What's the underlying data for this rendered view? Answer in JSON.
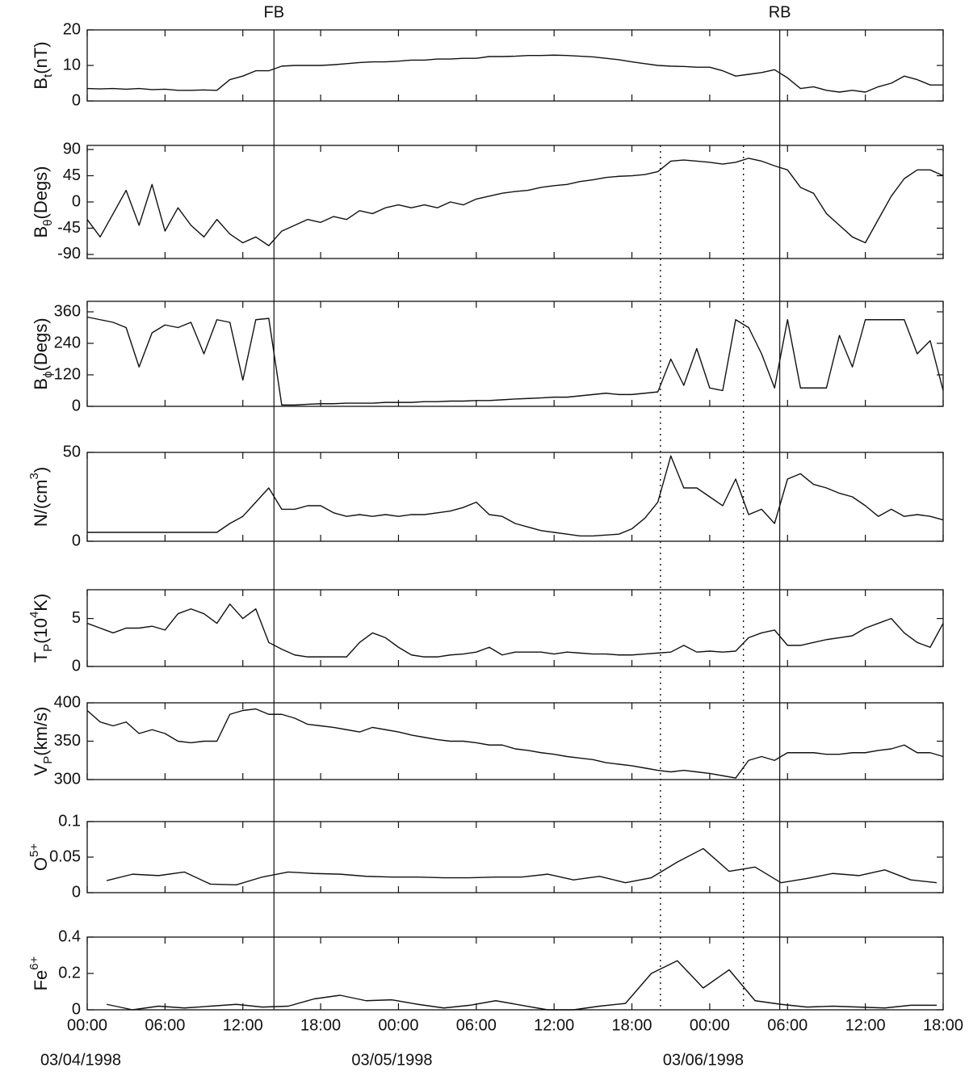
{
  "annotations": {
    "vlines": [
      {
        "x": 14.4,
        "label": "FB",
        "style": "solid"
      },
      {
        "x": 53.4,
        "label": "RB",
        "style": "solid"
      },
      {
        "x": 44.2,
        "style": "dotted"
      },
      {
        "x": 50.6,
        "style": "dotted"
      }
    ]
  },
  "chart_data": [
    {
      "type": "line",
      "ylabel": [
        {
          "text": "B"
        },
        {
          "text": "t",
          "shift": "sub"
        },
        {
          "text": "(nT)"
        }
      ],
      "xlim": [
        0,
        66
      ],
      "ylim": [
        0,
        20
      ],
      "yticks": [
        0,
        10,
        20
      ],
      "color": "#111111",
      "x": [
        0,
        1,
        2,
        3,
        4,
        5,
        6,
        7,
        8,
        9,
        10,
        11,
        12,
        13,
        14,
        15,
        16,
        17,
        18,
        19,
        20,
        21,
        22,
        23,
        24,
        25,
        26,
        27,
        28,
        29,
        30,
        31,
        32,
        33,
        34,
        35,
        36,
        37,
        38,
        39,
        40,
        41,
        42,
        43,
        44,
        45,
        46,
        47,
        48,
        49,
        50,
        51,
        52,
        53,
        54,
        55,
        56,
        57,
        58,
        59,
        60,
        61,
        62,
        63,
        64,
        65,
        66
      ],
      "values": [
        3.5,
        3.4,
        3.5,
        3.3,
        3.5,
        3.2,
        3.3,
        3.0,
        3.0,
        3.1,
        3.0,
        6,
        7,
        8.5,
        8.5,
        9.8,
        10,
        10,
        10,
        10.2,
        10.5,
        10.8,
        11,
        11,
        11.2,
        11.5,
        11.5,
        11.8,
        11.8,
        12,
        12,
        12.5,
        12.5,
        12.6,
        12.8,
        12.8,
        12.9,
        12.8,
        12.6,
        12.4,
        12,
        11.6,
        11,
        10.5,
        10,
        9.8,
        9.7,
        9.5,
        9.5,
        8.5,
        7,
        7.5,
        8,
        8.8,
        6.5,
        3.5,
        4,
        3,
        2.5,
        3,
        2.5,
        4,
        5,
        7,
        6,
        4.5,
        4.5
      ]
    },
    {
      "type": "line",
      "ylabel": [
        {
          "text": "B"
        },
        {
          "text": "θ",
          "shift": "sub"
        },
        {
          "text": "(Degs)"
        }
      ],
      "xlim": [
        0,
        66
      ],
      "ylim": [
        -97,
        97
      ],
      "yticks": [
        -90,
        -45,
        0,
        45,
        90
      ],
      "color": "#111111",
      "x": [
        0,
        1,
        2,
        3,
        4,
        5,
        6,
        7,
        8,
        9,
        10,
        11,
        12,
        13,
        14,
        15,
        16,
        17,
        18,
        19,
        20,
        21,
        22,
        23,
        24,
        25,
        26,
        27,
        28,
        29,
        30,
        31,
        32,
        33,
        34,
        35,
        36,
        37,
        38,
        39,
        40,
        41,
        42,
        43,
        44,
        45,
        46,
        47,
        48,
        49,
        50,
        51,
        52,
        53,
        54,
        55,
        56,
        57,
        58,
        59,
        60,
        61,
        62,
        63,
        64,
        65,
        66
      ],
      "values": [
        -30,
        -60,
        -20,
        20,
        -40,
        30,
        -50,
        -10,
        -40,
        -60,
        -30,
        -55,
        -70,
        -60,
        -75,
        -50,
        -40,
        -30,
        -35,
        -25,
        -30,
        -15,
        -20,
        -10,
        -5,
        -10,
        -5,
        -10,
        0,
        -5,
        5,
        10,
        15,
        18,
        20,
        25,
        28,
        30,
        35,
        38,
        42,
        44,
        45,
        47,
        52,
        70,
        72,
        70,
        68,
        65,
        68,
        75,
        70,
        62,
        55,
        25,
        15,
        -20,
        -40,
        -60,
        -70,
        -30,
        10,
        40,
        55,
        55,
        45
      ]
    },
    {
      "type": "line",
      "ylabel": [
        {
          "text": "B"
        },
        {
          "text": "ϕ",
          "shift": "sub"
        },
        {
          "text": "(Degs)"
        }
      ],
      "xlim": [
        0,
        66
      ],
      "ylim": [
        0,
        400
      ],
      "yticks": [
        0,
        120,
        240,
        360
      ],
      "color": "#111111",
      "x": [
        0,
        1,
        2,
        3,
        4,
        5,
        6,
        7,
        8,
        9,
        10,
        11,
        12,
        13,
        14,
        15,
        16,
        17,
        18,
        19,
        20,
        21,
        22,
        23,
        24,
        25,
        26,
        27,
        28,
        29,
        30,
        31,
        32,
        33,
        34,
        35,
        36,
        37,
        38,
        39,
        40,
        41,
        42,
        43,
        44,
        45,
        46,
        47,
        48,
        49,
        50,
        51,
        52,
        53,
        54,
        55,
        56,
        57,
        58,
        59,
        60,
        61,
        62,
        63,
        64,
        65,
        66
      ],
      "values": [
        340,
        330,
        320,
        300,
        150,
        280,
        310,
        300,
        320,
        200,
        330,
        320,
        100,
        330,
        335,
        5,
        5,
        8,
        10,
        10,
        12,
        12,
        12,
        15,
        15,
        15,
        18,
        18,
        20,
        20,
        22,
        22,
        25,
        28,
        30,
        32,
        35,
        35,
        40,
        45,
        50,
        45,
        45,
        50,
        55,
        180,
        80,
        220,
        70,
        60,
        330,
        300,
        200,
        70,
        330,
        70,
        70,
        70,
        270,
        150,
        330,
        330,
        330,
        330,
        200,
        250,
        60
      ]
    },
    {
      "type": "line",
      "ylabel": [
        {
          "text": "N/(cm"
        },
        {
          "text": "3",
          "shift": "super"
        },
        {
          "text": ")"
        }
      ],
      "xlim": [
        0,
        66
      ],
      "ylim": [
        0,
        50
      ],
      "yticks": [
        0,
        50
      ],
      "color": "#111111",
      "x": [
        0,
        1,
        2,
        3,
        4,
        5,
        6,
        7,
        8,
        9,
        10,
        11,
        12,
        13,
        14,
        15,
        16,
        17,
        18,
        19,
        20,
        21,
        22,
        23,
        24,
        25,
        26,
        27,
        28,
        29,
        30,
        31,
        32,
        33,
        34,
        35,
        36,
        37,
        38,
        39,
        40,
        41,
        42,
        43,
        44,
        45,
        46,
        47,
        48,
        49,
        50,
        51,
        52,
        53,
        54,
        55,
        56,
        57,
        58,
        59,
        60,
        61,
        62,
        63,
        64,
        65,
        66
      ],
      "values": [
        5,
        5,
        5,
        5,
        5,
        5,
        5,
        5,
        5,
        5,
        5,
        10,
        14,
        22,
        30,
        18,
        18,
        20,
        20,
        16,
        14,
        15,
        14,
        15,
        14,
        15,
        15,
        16,
        17,
        19,
        22,
        15,
        14,
        10,
        8,
        6,
        5,
        4,
        3,
        3,
        3.5,
        4,
        7,
        13,
        22,
        48,
        30,
        30,
        25,
        20,
        35,
        15,
        18,
        10,
        35,
        38,
        32,
        30,
        27,
        25,
        20,
        14,
        18,
        14,
        15,
        14,
        12
      ]
    },
    {
      "type": "line",
      "ylabel": [
        {
          "text": "T"
        },
        {
          "text": "P",
          "shift": "sub"
        },
        {
          "text": "(10"
        },
        {
          "text": "4",
          "shift": "super"
        },
        {
          "text": "K)"
        }
      ],
      "xlim": [
        0,
        66
      ],
      "ylim": [
        0,
        8
      ],
      "yticks": [
        0,
        5
      ],
      "color": "#111111",
      "x": [
        0,
        1,
        2,
        3,
        4,
        5,
        6,
        7,
        8,
        9,
        10,
        11,
        12,
        13,
        14,
        15,
        16,
        17,
        18,
        19,
        20,
        21,
        22,
        23,
        24,
        25,
        26,
        27,
        28,
        29,
        30,
        31,
        32,
        33,
        34,
        35,
        36,
        37,
        38,
        39,
        40,
        41,
        42,
        43,
        44,
        45,
        46,
        47,
        48,
        49,
        50,
        51,
        52,
        53,
        54,
        55,
        56,
        57,
        58,
        59,
        60,
        61,
        62,
        63,
        64,
        65,
        66
      ],
      "values": [
        4.5,
        4,
        3.5,
        4,
        4,
        4.2,
        3.8,
        5.5,
        6,
        5.5,
        4.5,
        6.5,
        5,
        6,
        2.5,
        1.8,
        1.2,
        1.0,
        1.0,
        1.0,
        1.0,
        2.5,
        3.5,
        3,
        2,
        1.2,
        1.0,
        1.0,
        1.2,
        1.3,
        1.5,
        2,
        1.2,
        1.5,
        1.5,
        1.5,
        1.3,
        1.5,
        1.4,
        1.3,
        1.3,
        1.2,
        1.2,
        1.3,
        1.4,
        1.5,
        2.2,
        1.5,
        1.6,
        1.5,
        1.6,
        3,
        3.5,
        3.8,
        2.2,
        2.2,
        2.5,
        2.8,
        3,
        3.2,
        4,
        4.5,
        5,
        3.5,
        2.5,
        2,
        4.5
      ]
    },
    {
      "type": "line",
      "ylabel": [
        {
          "text": "V"
        },
        {
          "text": "P",
          "shift": "sub"
        },
        {
          "text": "(km/s)"
        }
      ],
      "xlim": [
        0,
        66
      ],
      "ylim": [
        300,
        400
      ],
      "yticks": [
        300,
        350,
        400
      ],
      "color": "#111111",
      "x": [
        0,
        1,
        2,
        3,
        4,
        5,
        6,
        7,
        8,
        9,
        10,
        11,
        12,
        13,
        14,
        15,
        16,
        17,
        18,
        19,
        20,
        21,
        22,
        23,
        24,
        25,
        26,
        27,
        28,
        29,
        30,
        31,
        32,
        33,
        34,
        35,
        36,
        37,
        38,
        39,
        40,
        41,
        42,
        43,
        44,
        45,
        46,
        47,
        48,
        49,
        50,
        51,
        52,
        53,
        54,
        55,
        56,
        57,
        58,
        59,
        60,
        61,
        62,
        63,
        64,
        65,
        66
      ],
      "values": [
        390,
        375,
        370,
        375,
        360,
        365,
        360,
        350,
        348,
        350,
        350,
        385,
        390,
        392,
        385,
        385,
        380,
        372,
        370,
        368,
        365,
        362,
        368,
        365,
        362,
        358,
        355,
        352,
        350,
        350,
        348,
        345,
        345,
        340,
        338,
        335,
        333,
        330,
        328,
        326,
        322,
        320,
        318,
        315,
        312,
        310,
        312,
        310,
        308,
        305,
        302,
        325,
        330,
        325,
        335,
        335,
        335,
        333,
        333,
        335,
        335,
        338,
        340,
        345,
        335,
        335,
        330
      ]
    },
    {
      "type": "line",
      "ylabel": [
        {
          "text": "O"
        },
        {
          "text": "5+",
          "shift": "super"
        }
      ],
      "xlim": [
        0,
        66
      ],
      "ylim": [
        0,
        0.1
      ],
      "yticks": [
        0,
        0.05,
        0.1
      ],
      "color": "#111111",
      "x": [
        1.5,
        3.5,
        5.5,
        7.5,
        9.5,
        11.5,
        13.5,
        15.5,
        17.5,
        19.5,
        21.5,
        23.5,
        25.5,
        27.5,
        29.5,
        31.5,
        33.5,
        35.5,
        37.5,
        39.5,
        41.5,
        43.5,
        45.5,
        47.5,
        49.5,
        51.5,
        53.5,
        55.5,
        57.5,
        59.5,
        61.5,
        63.5,
        65.5
      ],
      "values": [
        0.017,
        0.026,
        0.024,
        0.029,
        0.012,
        0.011,
        0.022,
        0.029,
        0.027,
        0.026,
        0.023,
        0.022,
        0.022,
        0.021,
        0.021,
        0.022,
        0.022,
        0.026,
        0.018,
        0.023,
        0.014,
        0.021,
        0.043,
        0.062,
        0.03,
        0.036,
        0.014,
        0.02,
        0.027,
        0.024,
        0.032,
        0.018,
        0.014
      ]
    },
    {
      "type": "line",
      "ylabel": [
        {
          "text": "Fe"
        },
        {
          "text": "6+",
          "shift": "super"
        }
      ],
      "xlim": [
        0,
        66
      ],
      "ylim": [
        0,
        0.4
      ],
      "yticks": [
        0,
        0.2,
        0.4
      ],
      "color": "#111111",
      "xticks": [
        {
          "value": 0,
          "label": "00:00"
        },
        {
          "value": 6,
          "label": "06:00"
        },
        {
          "value": 12,
          "label": "12:00"
        },
        {
          "value": 18,
          "label": "18:00"
        },
        {
          "value": 24,
          "label": "00:00"
        },
        {
          "value": 30,
          "label": "06:00"
        },
        {
          "value": 36,
          "label": "12:00"
        },
        {
          "value": 42,
          "label": "18:00"
        },
        {
          "value": 48,
          "label": "00:00"
        },
        {
          "value": 54,
          "label": "06:00"
        },
        {
          "value": 60,
          "label": "12:00"
        },
        {
          "value": 66,
          "label": "18:00"
        }
      ],
      "date_labels": [
        {
          "value": 0,
          "label": "03/04/1998"
        },
        {
          "value": 24,
          "label": "03/05/1998"
        },
        {
          "value": 48,
          "label": "03/06/1998"
        }
      ],
      "x": [
        1.5,
        3.5,
        5.5,
        7.5,
        9.5,
        11.5,
        13.5,
        15.5,
        17.5,
        19.5,
        21.5,
        23.5,
        25.5,
        27.5,
        29.5,
        31.5,
        33.5,
        35.5,
        37.5,
        39.5,
        41.5,
        43.5,
        45.5,
        47.5,
        49.5,
        51.5,
        53.5,
        55.5,
        57.5,
        59.5,
        61.5,
        63.5,
        65.5
      ],
      "values": [
        0.03,
        0,
        0.02,
        0.01,
        0.02,
        0.03,
        0.015,
        0.02,
        0.06,
        0.08,
        0.05,
        0.055,
        0.03,
        0.01,
        0.025,
        0.05,
        0.025,
        0,
        0,
        0.02,
        0.035,
        0.2,
        0.27,
        0.12,
        0.22,
        0.05,
        0.03,
        0.015,
        0.02,
        0.015,
        0.01,
        0.025,
        0.025
      ]
    }
  ]
}
